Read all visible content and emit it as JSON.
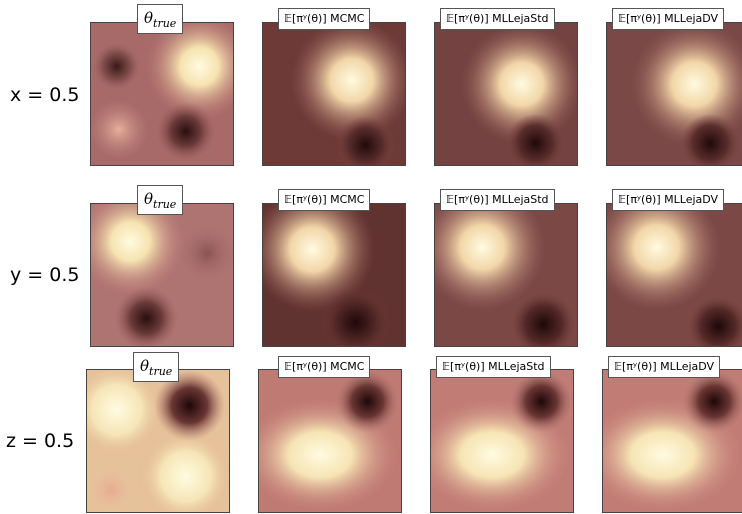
{
  "figure": {
    "rows": [
      {
        "label": "x = 0.5",
        "panels": [
          {
            "title": "θtrue",
            "main": "θ",
            "sub": "true"
          },
          {
            "title": "𝔼[πʸ(θ)] MCMC"
          },
          {
            "title": "𝔼[πʸ(θ)] MLLejaStd"
          },
          {
            "title": "𝔼[πʸ(θ)] MLLejaDV"
          }
        ]
      },
      {
        "label": "y = 0.5",
        "panels": [
          {
            "title": "θtrue",
            "main": "θ",
            "sub": "true"
          },
          {
            "title": "𝔼[πʸ(θ)] MCMC"
          },
          {
            "title": "𝔼[πʸ(θ)] MLLejaStd"
          },
          {
            "title": "𝔼[πʸ(θ)] MLLejaDV"
          }
        ]
      },
      {
        "label": "z = 0.5",
        "panels": [
          {
            "title": "θtrue",
            "main": "θ",
            "sub": "true"
          },
          {
            "title": "𝔼[πʸ(θ)] MCMC"
          },
          {
            "title": "𝔼[πʸ(θ)] MLLejaStd"
          },
          {
            "title": "𝔼[πʸ(θ)] MLLejaDV"
          }
        ]
      }
    ],
    "colormap": [
      "#2a0f0f",
      "#c77a76",
      "#fffbe0"
    ]
  }
}
